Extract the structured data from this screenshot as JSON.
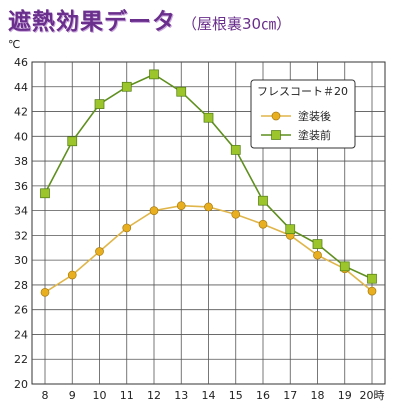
{
  "title": "遮熱効果データ",
  "subtitle": "（屋根裏30㎝）",
  "chart_data": {
    "type": "line",
    "x": [
      8,
      9,
      10,
      11,
      12,
      13,
      14,
      15,
      16,
      17,
      18,
      19,
      20
    ],
    "x_tick_labels": [
      "8",
      "9",
      "10",
      "11",
      "12",
      "13",
      "14",
      "15",
      "16",
      "17",
      "18",
      "19",
      "20時"
    ],
    "ylim": [
      20,
      46
    ],
    "y_ticks": [
      20,
      22,
      24,
      26,
      28,
      30,
      32,
      34,
      36,
      38,
      40,
      42,
      44,
      46
    ],
    "y_unit": "℃",
    "grid": true,
    "legend": {
      "title": "フレスコート＃20",
      "position": "top-right"
    },
    "series": [
      {
        "name": "塗装後",
        "marker": "circle",
        "color": "#e8b020",
        "line_color": "#e0b64a",
        "values": [
          27.4,
          28.8,
          30.7,
          32.6,
          34.0,
          34.4,
          34.3,
          33.7,
          32.9,
          32.0,
          30.4,
          29.3,
          27.5
        ]
      },
      {
        "name": "塗装前",
        "marker": "square",
        "color": "#9cc52c",
        "line_color": "#5f8f1e",
        "values": [
          35.4,
          39.6,
          42.6,
          44.0,
          45.0,
          43.6,
          41.5,
          38.9,
          34.8,
          32.5,
          31.3,
          29.5,
          28.5
        ]
      }
    ]
  }
}
